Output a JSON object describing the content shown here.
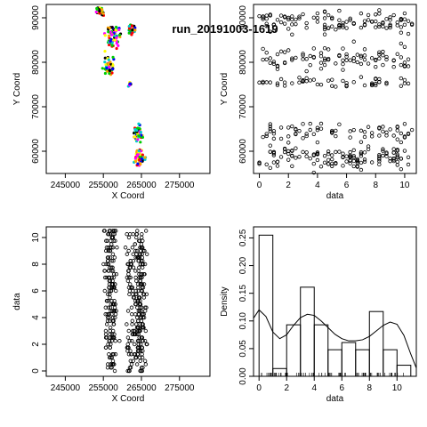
{
  "title": "run_20191003-1619",
  "chart_data": [
    {
      "type": "scatter",
      "panel": "top-left",
      "xlabel": "X Coord",
      "ylabel": "Y Coord",
      "xlim": [
        240000,
        283000
      ],
      "ylim": [
        55000,
        93000
      ],
      "xticks": [
        245000,
        255000,
        265000,
        275000
      ],
      "yticks": [
        60000,
        70000,
        80000,
        90000
      ],
      "colors": [
        "#ff0000",
        "#00cc00",
        "#0000ff",
        "#ffa500",
        "#ffff00",
        "#ff00ff",
        "#00cccc",
        "#000000"
      ],
      "clusters": [
        {
          "x": 254000,
          "y": 91500,
          "w": 1500,
          "h": 1500,
          "n": 25
        },
        {
          "x": 257500,
          "y": 85500,
          "w": 2500,
          "h": 3500,
          "n": 70
        },
        {
          "x": 262500,
          "y": 87500,
          "w": 1500,
          "h": 1500,
          "n": 25
        },
        {
          "x": 256500,
          "y": 79000,
          "w": 2000,
          "h": 2500,
          "n": 50
        },
        {
          "x": 262000,
          "y": 75000,
          "w": 800,
          "h": 800,
          "n": 12
        },
        {
          "x": 264000,
          "y": 64000,
          "w": 1500,
          "h": 2500,
          "n": 50
        },
        {
          "x": 264500,
          "y": 58500,
          "w": 2000,
          "h": 2500,
          "n": 60
        }
      ]
    },
    {
      "type": "scatter",
      "panel": "top-right",
      "xlabel": "data",
      "ylabel": "Y Coord",
      "xlim": [
        -0.4,
        10.8
      ],
      "ylim": [
        55000,
        93000
      ],
      "xticks": [
        0,
        2,
        4,
        6,
        8,
        10
      ],
      "yticks": [
        60000,
        70000,
        80000,
        90000
      ],
      "bands": [
        {
          "y": 89000,
          "h": 4000,
          "n": 110
        },
        {
          "y": 81000,
          "h": 4000,
          "n": 90
        },
        {
          "y": 75500,
          "h": 1500,
          "n": 50
        },
        {
          "y": 64500,
          "h": 3000,
          "n": 70
        },
        {
          "y": 58500,
          "h": 4000,
          "n": 130
        }
      ]
    },
    {
      "type": "scatter",
      "panel": "bottom-left",
      "xlabel": "X Coord",
      "ylabel": "data",
      "xlim": [
        240000,
        283000
      ],
      "ylim": [
        -0.4,
        10.8
      ],
      "xticks": [
        245000,
        255000,
        265000,
        275000
      ],
      "yticks": [
        0,
        2,
        4,
        6,
        8,
        10
      ],
      "columns": [
        {
          "x": 257000,
          "w": 2500,
          "n": 180
        },
        {
          "x": 262000,
          "w": 1500,
          "n": 60
        },
        {
          "x": 264500,
          "w": 2500,
          "n": 200
        }
      ]
    },
    {
      "type": "bar",
      "panel": "bottom-right",
      "xlabel": "data",
      "ylabel": "Density",
      "xlim": [
        -0.4,
        11.4
      ],
      "ylim": [
        0,
        0.27
      ],
      "xticks": [
        0,
        2,
        4,
        6,
        8,
        10
      ],
      "yticks": [
        0.0,
        0.05,
        0.1,
        0.15,
        0.2,
        0.25
      ],
      "bin_edges": [
        0,
        1,
        2,
        3,
        4,
        5,
        6,
        7,
        8,
        9,
        10,
        11
      ],
      "values": [
        0.255,
        0.014,
        0.093,
        0.161,
        0.093,
        0.048,
        0.061,
        0.048,
        0.117,
        0.048,
        0.02
      ],
      "density_curve": {
        "x": [
          -0.4,
          0,
          0.5,
          1,
          1.5,
          2,
          2.5,
          3,
          3.5,
          4,
          4.5,
          5,
          5.5,
          6,
          6.5,
          7,
          7.5,
          8,
          8.5,
          9,
          9.5,
          10,
          10.5,
          11,
          11.4
        ],
        "y": [
          0.105,
          0.12,
          0.108,
          0.08,
          0.068,
          0.075,
          0.092,
          0.106,
          0.112,
          0.11,
          0.1,
          0.088,
          0.076,
          0.068,
          0.064,
          0.064,
          0.066,
          0.072,
          0.082,
          0.092,
          0.098,
          0.094,
          0.074,
          0.04,
          0.015
        ]
      }
    }
  ]
}
